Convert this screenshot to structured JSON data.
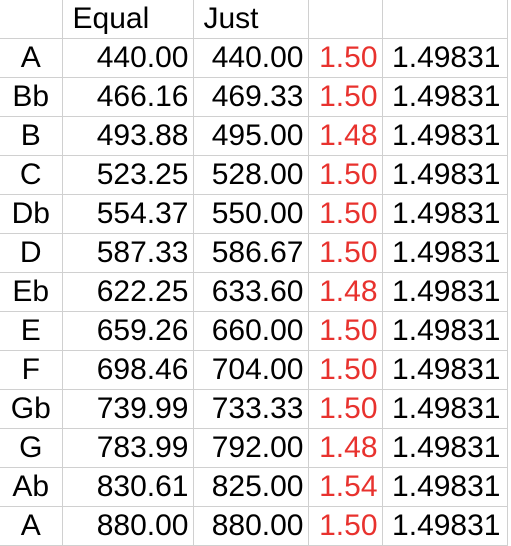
{
  "header": {
    "note": "",
    "equal": "Equal",
    "just": "Just",
    "ratio": "",
    "const": ""
  },
  "rows": [
    {
      "note": "A",
      "equal": "440.00",
      "just": "440.00",
      "ratio": "1.50",
      "const": "1.49831"
    },
    {
      "note": "Bb",
      "equal": "466.16",
      "just": "469.33",
      "ratio": "1.50",
      "const": "1.49831"
    },
    {
      "note": "B",
      "equal": "493.88",
      "just": "495.00",
      "ratio": "1.48",
      "const": "1.49831"
    },
    {
      "note": "C",
      "equal": "523.25",
      "just": "528.00",
      "ratio": "1.50",
      "const": "1.49831"
    },
    {
      "note": "Db",
      "equal": "554.37",
      "just": "550.00",
      "ratio": "1.50",
      "const": "1.49831"
    },
    {
      "note": "D",
      "equal": "587.33",
      "just": "586.67",
      "ratio": "1.50",
      "const": "1.49831"
    },
    {
      "note": "Eb",
      "equal": "622.25",
      "just": "633.60",
      "ratio": "1.48",
      "const": "1.49831"
    },
    {
      "note": "E",
      "equal": "659.26",
      "just": "660.00",
      "ratio": "1.50",
      "const": "1.49831"
    },
    {
      "note": "F",
      "equal": "698.46",
      "just": "704.00",
      "ratio": "1.50",
      "const": "1.49831"
    },
    {
      "note": "Gb",
      "equal": "739.99",
      "just": "733.33",
      "ratio": "1.50",
      "const": "1.49831"
    },
    {
      "note": "G",
      "equal": "783.99",
      "just": "792.00",
      "ratio": "1.48",
      "const": "1.49831"
    },
    {
      "note": "Ab",
      "equal": "830.61",
      "just": "825.00",
      "ratio": "1.54",
      "const": "1.49831"
    },
    {
      "note": "A",
      "equal": "880.00",
      "just": "880.00",
      "ratio": "1.50",
      "const": "1.49831"
    }
  ],
  "colors": {
    "ratio_text": "#e8322e",
    "grid_line": "#d0d0d0"
  }
}
